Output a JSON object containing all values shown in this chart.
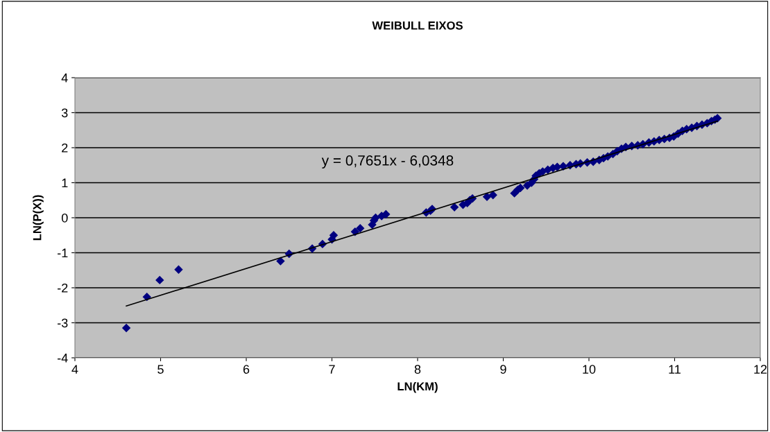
{
  "chart_data": {
    "type": "scatter",
    "title": "WEIBULL EIXOS",
    "xlabel": "LN(KM)",
    "ylabel": "LN(P(X))",
    "xlim": [
      4,
      12
    ],
    "xticks": [
      4,
      5,
      6,
      7,
      8,
      9,
      10,
      11,
      12
    ],
    "ylim": [
      -4,
      4
    ],
    "yticks": [
      -4,
      -3,
      -2,
      -1,
      0,
      1,
      2,
      3,
      4
    ],
    "grid": "y",
    "legend": false,
    "annotations": [
      "y = 0,7651x - 6,0348"
    ],
    "series": [
      {
        "color": "#000080",
        "marker": "diamond",
        "x": [
          4.6,
          4.84,
          4.99,
          5.21,
          6.4,
          6.5,
          6.77,
          6.89,
          7.0,
          7.02,
          7.27,
          7.33,
          7.47,
          7.49,
          7.51,
          7.58,
          7.63,
          8.1,
          8.15,
          8.17,
          8.43,
          8.53,
          8.58,
          8.61,
          8.64,
          8.81,
          8.88,
          9.13,
          9.17,
          9.2,
          9.28,
          9.33,
          9.36,
          9.38,
          9.42,
          9.46,
          9.52,
          9.58,
          9.63,
          9.7,
          9.78,
          9.85,
          9.9,
          9.98,
          10.05,
          10.12,
          10.17,
          10.22,
          10.28,
          10.33,
          10.38,
          10.43,
          10.5,
          10.57,
          10.63,
          10.7,
          10.76,
          10.82,
          10.88,
          10.94,
          10.99,
          11.04,
          11.09,
          11.14,
          11.2,
          11.26,
          11.32,
          11.38,
          11.43,
          11.47,
          11.5
        ],
        "values": [
          -3.15,
          -2.26,
          -1.78,
          -1.48,
          -1.24,
          -1.03,
          -0.88,
          -0.75,
          -0.62,
          -0.5,
          -0.4,
          -0.3,
          -0.2,
          -0.08,
          0.0,
          0.05,
          0.1,
          0.15,
          0.2,
          0.25,
          0.3,
          0.37,
          0.42,
          0.5,
          0.55,
          0.6,
          0.65,
          0.7,
          0.8,
          0.85,
          0.92,
          1.0,
          1.1,
          1.2,
          1.27,
          1.32,
          1.37,
          1.42,
          1.45,
          1.47,
          1.5,
          1.53,
          1.55,
          1.58,
          1.6,
          1.65,
          1.7,
          1.75,
          1.82,
          1.9,
          1.97,
          2.02,
          2.05,
          2.07,
          2.1,
          2.15,
          2.18,
          2.22,
          2.25,
          2.28,
          2.32,
          2.4,
          2.48,
          2.53,
          2.57,
          2.62,
          2.66,
          2.7,
          2.76,
          2.8,
          2.84
        ]
      },
      {
        "type": "line",
        "color": "#000000",
        "x": [
          4.6,
          11.5
        ],
        "values": [
          -2.52,
          2.76
        ]
      }
    ]
  }
}
